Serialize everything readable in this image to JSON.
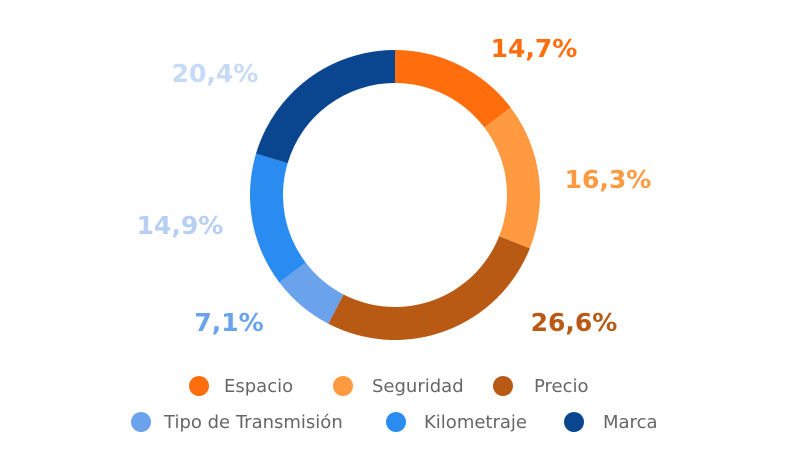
{
  "chart_data": {
    "type": "donut",
    "title": "",
    "categories": [
      "Espacio",
      "Seguridad",
      "Precio",
      "Tipo de Transmisión",
      "Kilometraje",
      "Marca"
    ],
    "values": [
      14.7,
      16.3,
      26.6,
      7.1,
      14.9,
      20.4
    ],
    "value_labels": [
      "14,7%",
      "16,3%",
      "26,6%",
      "7,1%",
      "14,9%",
      "20,4%"
    ],
    "colors": [
      "#ff6d0d",
      "#ff9a40",
      "#b85a14",
      "#6aa3ec",
      "#2a8cf0",
      "#0a4690"
    ],
    "label_colors": [
      "#ff6d0d",
      "#ff9a40",
      "#b85a14",
      "#6aa3ec",
      "#b7cff2",
      "#c6d9f5"
    ],
    "legend_position": "bottom",
    "start_angle_deg": 0,
    "direction": "clockwise"
  }
}
